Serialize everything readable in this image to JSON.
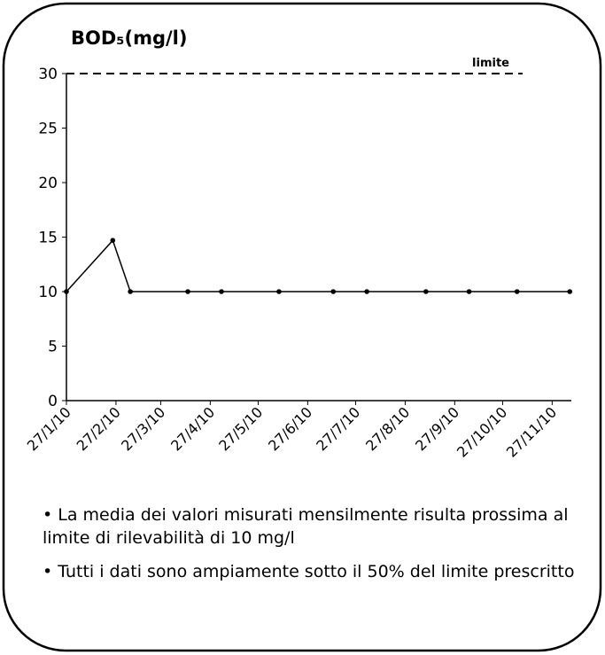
{
  "chart_data": {
    "type": "line",
    "title": "BOD₅(mg/l)",
    "x": [
      "2010-01-27",
      "2010-02-25",
      "2010-03-08",
      "2010-04-13",
      "2010-05-04",
      "2010-06-09",
      "2010-07-13",
      "2010-08-03",
      "2010-09-09",
      "2010-10-06",
      "2010-11-05",
      "2010-12-08"
    ],
    "series": [
      {
        "name": "BOD5",
        "color": "#000000",
        "values": [
          10,
          14.7,
          10,
          10,
          10,
          10,
          10,
          10,
          10,
          10,
          10,
          10
        ]
      }
    ],
    "xlim": [
      "2010-01-27",
      "2010-12-09"
    ],
    "xticks": [
      {
        "value": "2010-01-27",
        "label": "27/1/10"
      },
      {
        "value": "2010-02-27",
        "label": "27/2/10"
      },
      {
        "value": "2010-03-27",
        "label": "27/3/10"
      },
      {
        "value": "2010-04-27",
        "label": "27/4/10"
      },
      {
        "value": "2010-05-27",
        "label": "27/5/10"
      },
      {
        "value": "2010-06-27",
        "label": "27/6/10"
      },
      {
        "value": "2010-07-27",
        "label": "27/7/10"
      },
      {
        "value": "2010-08-27",
        "label": "27/8/10"
      },
      {
        "value": "2010-09-27",
        "label": "27/9/10"
      },
      {
        "value": "2010-10-27",
        "label": "27/10/10"
      },
      {
        "value": "2010-11-27",
        "label": "27/11/10"
      }
    ],
    "ylim": [
      0,
      30
    ],
    "yticks": [
      0,
      5,
      10,
      15,
      20,
      25,
      30
    ],
    "grid": false,
    "limit": {
      "value": 30,
      "label": "limite"
    },
    "notes": [
      "• La media dei valori misurati mensilmente risulta prossima al limite di rilevabilità di 10 mg/l",
      "• Tutti i dati sono ampiamente sotto il 50% del limite prescritto"
    ]
  }
}
